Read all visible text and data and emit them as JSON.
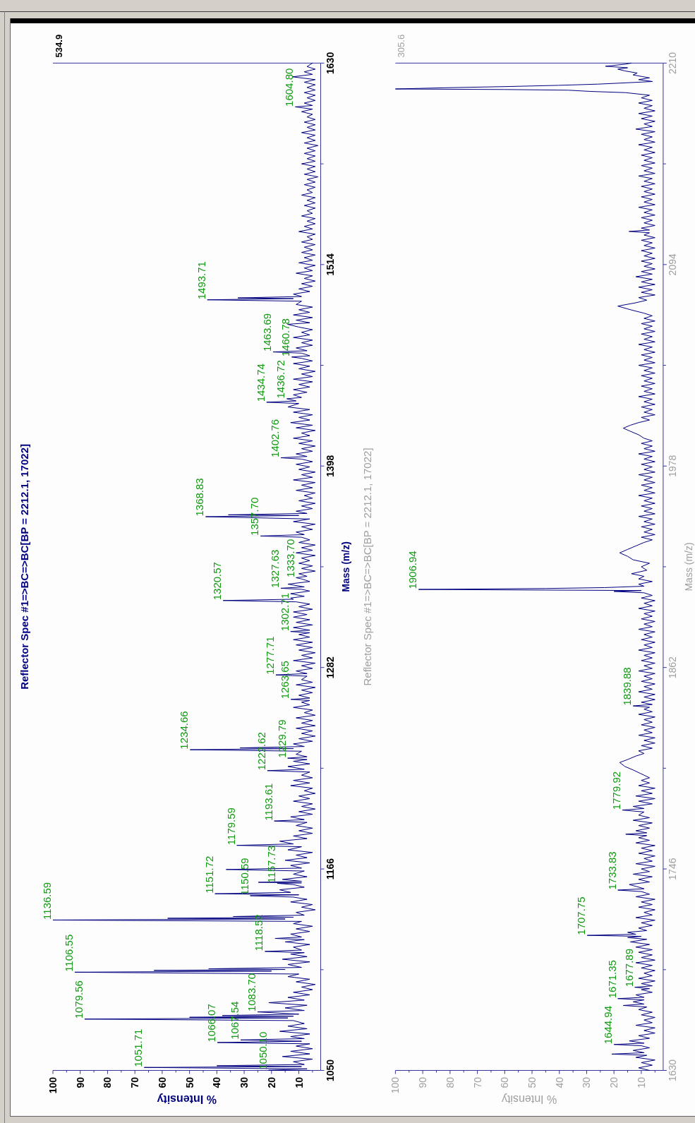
{
  "chart_data": [
    {
      "type": "line",
      "title": "Reflector Spec #1=>BC=>BC[BP = 2212.1, 17022]",
      "xlabel": "% Intensity",
      "ylabel": "Mass (m/z)",
      "xlim": [
        100,
        2
      ],
      "xticks": [
        100,
        {
          "value": 95,
          "label": null
        },
        90,
        {
          "value": 85,
          "label": null
        },
        80,
        {
          "value": 75,
          "label": null
        },
        70,
        {
          "value": 65,
          "label": null
        },
        60,
        {
          "value": 55,
          "label": null
        },
        50,
        {
          "value": 45,
          "label": null
        },
        40,
        {
          "value": 35,
          "label": null
        },
        30,
        {
          "value": 25,
          "label": null
        },
        20,
        {
          "value": 15,
          "label": null
        },
        10,
        {
          "value": 5,
          "label": null
        }
      ],
      "ylim": [
        1050,
        1630
      ],
      "yticks": [
        1050,
        {
          "value": 1108,
          "label": null
        },
        1166,
        {
          "value": 1224,
          "label": null
        },
        1282,
        {
          "value": 1340,
          "label": null
        },
        1398,
        {
          "value": 1456,
          "label": null
        },
        1514,
        {
          "value": 1572,
          "label": null
        },
        1630
      ],
      "x": [
        6,
        21.1,
        7,
        66.6,
        9,
        40,
        8,
        12,
        5,
        16,
        6,
        13,
        5,
        11,
        6,
        39.8,
        9,
        31.3,
        8,
        13,
        6,
        17,
        7,
        14,
        8,
        12,
        88.4,
        14,
        50,
        12,
        38,
        10,
        25.1,
        8,
        15,
        7,
        21,
        8,
        14,
        6,
        12,
        5,
        9,
        4,
        11,
        6,
        14,
        10,
        92,
        20,
        63,
        15,
        43,
        9,
        14,
        6,
        16,
        7,
        13,
        8,
        22.4,
        9,
        12,
        6,
        15,
        8,
        18.7,
        9,
        13,
        6,
        11,
        5,
        12,
        9,
        100,
        15,
        58,
        12,
        34,
        8,
        11,
        4,
        9,
        5,
        13,
        7,
        12,
        27.8,
        10,
        40.7,
        13,
        17,
        8,
        12,
        17.9,
        9,
        24.8,
        9,
        16,
        7,
        12,
        8,
        36.6,
        9,
        13,
        6,
        15,
        7,
        11,
        5,
        14,
        9,
        32.7,
        12,
        17,
        7,
        12,
        5,
        10,
        5,
        11,
        7,
        19,
        8,
        13,
        5,
        10,
        4,
        9,
        5,
        12,
        6,
        10,
        4,
        8,
        5,
        13,
        6,
        12,
        5,
        9,
        6,
        21.5,
        8,
        14,
        6,
        12,
        7,
        14.1,
        7,
        11,
        9,
        49.8,
        12,
        31.5,
        8,
        12,
        5,
        10,
        4,
        9,
        5,
        11,
        4,
        9,
        5,
        11,
        4,
        8,
        5,
        12,
        6,
        9,
        6,
        12.9,
        6,
        10,
        5,
        9,
        4,
        11,
        5,
        9,
        7,
        18.4,
        7,
        11,
        5,
        9,
        4,
        12,
        5,
        9,
        4,
        10,
        5,
        11,
        5,
        12,
        6,
        10,
        6,
        13,
        6,
        12,
        5,
        11,
        6,
        12,
        7,
        12,
        5,
        10,
        6,
        11,
        37.7,
        12,
        13,
        8,
        13,
        6,
        9,
        16.6,
        8,
        14,
        6,
        9,
        11,
        7,
        10,
        4,
        9,
        5,
        10,
        6,
        9,
        4,
        11,
        5,
        9,
        4,
        10,
        6,
        9,
        24,
        8,
        11,
        5,
        9,
        4,
        12,
        6,
        44.1,
        10,
        35.8,
        7,
        11,
        5,
        9,
        4,
        10,
        5,
        8,
        4,
        11,
        5,
        9,
        4,
        12,
        5,
        9,
        4,
        10,
        6,
        11,
        5,
        9,
        16.6,
        7,
        11,
        5,
        9,
        4,
        10,
        5,
        12,
        6,
        9,
        4,
        11,
        5,
        13,
        6,
        10,
        5,
        12,
        6,
        14,
        10,
        21.8,
        11,
        14.4,
        9,
        12,
        7,
        12,
        6,
        10,
        5,
        12,
        5,
        9,
        4,
        10,
        6,
        12,
        5,
        9,
        12.6,
        6,
        9,
        19.4,
        7,
        11,
        5,
        9,
        5,
        12,
        6,
        9,
        5,
        10,
        14.1,
        6,
        11,
        5,
        12,
        6,
        10,
        5,
        11,
        9,
        43.5,
        12,
        32.3,
        9,
        12,
        6,
        10,
        5,
        9,
        4,
        8,
        5,
        11,
        5,
        8,
        4,
        10,
        5,
        8,
        4,
        9,
        5,
        8,
        4,
        9,
        5,
        7,
        4,
        10,
        5,
        8,
        4,
        7,
        4,
        9,
        5,
        7,
        4,
        8,
        4,
        7,
        4,
        9,
        5,
        7,
        4,
        8,
        4,
        7,
        3,
        8,
        4,
        7,
        4,
        9,
        4,
        7,
        4,
        8,
        4,
        7,
        3,
        8,
        4,
        7,
        4,
        9,
        4,
        7,
        4,
        8,
        4,
        7,
        5,
        9,
        5,
        11.3,
        5,
        8,
        4,
        7,
        4,
        8,
        4,
        7,
        4,
        8,
        4,
        12.3,
        5,
        8,
        4,
        7,
        5
      ],
      "series": [
        {
          "color": "#000080",
          "values": [
            1050,
            1050.1,
            1050.9,
            1051.71,
            1052.2,
            1052.7,
            1053.4,
            1055,
            1056.5,
            1058,
            1059.5,
            1061,
            1062.5,
            1064,
            1065.3,
            1066.07,
            1066.8,
            1067.54,
            1068.3,
            1069.5,
            1071,
            1072.5,
            1074,
            1075.5,
            1077,
            1078.7,
            1079.56,
            1080.2,
            1080.6,
            1081.2,
            1081.6,
            1082.4,
            1083.7,
            1084.5,
            1086,
            1087.5,
            1089,
            1090.5,
            1092,
            1093.5,
            1095,
            1096.5,
            1098,
            1099.5,
            1101,
            1102.5,
            1104,
            1105.5,
            1106.55,
            1107.2,
            1107.6,
            1108.1,
            1108.5,
            1109.3,
            1111,
            1112.5,
            1114,
            1115.5,
            1117,
            1117.8,
            1118.52,
            1119.3,
            1121,
            1122.5,
            1124,
            1125.3,
            1126,
            1126.8,
            1128.5,
            1130,
            1131.5,
            1133,
            1134.5,
            1135.8,
            1136.59,
            1137.2,
            1137.6,
            1138.2,
            1138.6,
            1139.4,
            1141,
            1142.5,
            1144,
            1145.5,
            1147,
            1148.5,
            1149.8,
            1150.59,
            1151.1,
            1151.72,
            1152.5,
            1154,
            1155.5,
            1157,
            1157.73,
            1158,
            1158.3,
            1158.9,
            1160,
            1161.5,
            1163,
            1164.8,
            1165.7,
            1166.5,
            1168,
            1169.5,
            1171,
            1172.5,
            1174,
            1175.5,
            1177,
            1178.8,
            1179.59,
            1180.4,
            1182,
            1183.5,
            1185,
            1186.5,
            1188,
            1189.5,
            1191,
            1192.8,
            1193.61,
            1194.4,
            1196,
            1197.5,
            1199,
            1200.5,
            1202,
            1203.5,
            1205,
            1206.5,
            1208,
            1209.5,
            1211,
            1212.5,
            1214,
            1215.5,
            1217,
            1218.5,
            1220,
            1221.8,
            1222.62,
            1223.4,
            1225,
            1226.5,
            1228,
            1229,
            1229.79,
            1230.6,
            1232,
            1233.8,
            1234.66,
            1235.3,
            1235.7,
            1236.5,
            1238,
            1239.5,
            1241,
            1242.5,
            1244,
            1245.5,
            1247,
            1248.5,
            1250,
            1251.5,
            1253,
            1254.5,
            1256,
            1257.5,
            1259,
            1260.5,
            1262,
            1263,
            1263.65,
            1264.4,
            1266,
            1267.5,
            1269,
            1270.5,
            1272,
            1273.5,
            1275,
            1277,
            1277.71,
            1278.5,
            1280,
            1281.5,
            1283,
            1284.5,
            1286,
            1287.5,
            1289,
            1290.5,
            1292,
            1293.5,
            1295,
            1296.5,
            1298,
            1299.5,
            1301,
            1302,
            1302.71,
            1303.5,
            1305,
            1306.5,
            1308,
            1309.5,
            1311,
            1312.5,
            1314,
            1315.5,
            1317,
            1318.5,
            1319.8,
            1320.57,
            1321.3,
            1322,
            1323,
            1324.5,
            1326,
            1327,
            1327.63,
            1328.4,
            1330,
            1331.5,
            1333,
            1333.7,
            1334.5,
            1336,
            1337.5,
            1339,
            1340.5,
            1342,
            1343.5,
            1345,
            1346.5,
            1348,
            1349.5,
            1351,
            1352.5,
            1354,
            1355.5,
            1357,
            1357.7,
            1358.5,
            1360,
            1361.5,
            1363,
            1364.5,
            1366,
            1367.5,
            1368.83,
            1369.5,
            1369.9,
            1370.7,
            1372,
            1373.5,
            1375,
            1376.5,
            1378,
            1379.5,
            1381,
            1382.5,
            1384,
            1385.5,
            1387,
            1388.5,
            1390,
            1391.5,
            1393,
            1394.5,
            1396,
            1397.5,
            1399,
            1400.5,
            1402,
            1402.76,
            1403.5,
            1405,
            1406.5,
            1408,
            1409.5,
            1411,
            1412.5,
            1414,
            1415.5,
            1417,
            1418.5,
            1420,
            1421.5,
            1423,
            1424.5,
            1426,
            1427.5,
            1429,
            1430.5,
            1432,
            1434,
            1434.74,
            1435.5,
            1436.72,
            1437.5,
            1439,
            1440.5,
            1442,
            1443.5,
            1445,
            1446.5,
            1448,
            1449.5,
            1451,
            1452.5,
            1454,
            1455.5,
            1457,
            1458.5,
            1460,
            1460.78,
            1461.5,
            1463,
            1463.69,
            1464.4,
            1466,
            1467.5,
            1469,
            1470.5,
            1472,
            1473.5,
            1475,
            1476.5,
            1478,
            1479.6,
            1480.5,
            1482,
            1483.5,
            1485,
            1486.5,
            1488,
            1489.5,
            1491,
            1492.9,
            1493.71,
            1494.4,
            1494.8,
            1495.6,
            1497,
            1498.5,
            1500,
            1501.5,
            1503,
            1504.5,
            1506,
            1507.5,
            1509,
            1510.5,
            1512,
            1513.5,
            1515,
            1516.5,
            1518,
            1519.5,
            1521,
            1522.5,
            1524,
            1525.5,
            1527,
            1528.5,
            1530,
            1531.5,
            1533,
            1534.5,
            1536,
            1537.5,
            1539,
            1540.5,
            1542,
            1543.5,
            1545,
            1546.5,
            1548,
            1549.5,
            1551,
            1552.5,
            1554,
            1555.5,
            1557,
            1558.5,
            1560,
            1561.5,
            1563,
            1564.5,
            1566,
            1567.5,
            1569,
            1570.5,
            1572,
            1573.5,
            1575,
            1576.5,
            1578,
            1579.5,
            1581,
            1582.5,
            1584,
            1585.5,
            1587,
            1588.5,
            1590,
            1591.5,
            1593,
            1594.5,
            1596,
            1597.5,
            1599,
            1600.5,
            1602,
            1603.5,
            1604.8,
            1605.6,
            1607,
            1608.5,
            1610,
            1611.5,
            1613,
            1614.5,
            1616,
            1617.5,
            1619,
            1620.5,
            1622.1,
            1623.5,
            1625,
            1626.5,
            1628,
            1630
          ]
        }
      ],
      "annotations": [
        "534.9",
        {
          "text": "1050.10",
          "x": 21.1,
          "y": 1050.1
        },
        {
          "text": "1051.71",
          "x": 66.6,
          "y": 1051.71
        },
        {
          "text": "1066.07",
          "x": 39.8,
          "y": 1066.07
        },
        {
          "text": "1067.54",
          "x": 31.3,
          "y": 1067.54
        },
        {
          "text": "1079.56",
          "x": 88.4,
          "y": 1079.56
        },
        {
          "text": "1083.70",
          "x": 25.1,
          "y": 1083.7
        },
        {
          "text": "1106.55",
          "x": 92,
          "y": 1106.55
        },
        {
          "text": "1118.52",
          "x": 22.4,
          "y": 1118.52
        },
        {
          "text": "1136.59",
          "x": 100,
          "y": 1136.59
        },
        {
          "text": "1150.59",
          "x": 27.8,
          "y": 1150.59
        },
        {
          "text": "1151.72",
          "x": 40.7,
          "y": 1151.72
        },
        {
          "text": "1157.73",
          "x": 17.9,
          "y": 1157.73
        },
        {
          "text": "1179.59",
          "x": 32.7,
          "y": 1179.59
        },
        {
          "text": "1193.61",
          "x": 19,
          "y": 1193.61
        },
        {
          "text": "1222.62",
          "x": 21.5,
          "y": 1222.62
        },
        {
          "text": "1229.79",
          "x": 14.1,
          "y": 1229.79
        },
        {
          "text": "1234.66",
          "x": 49.8,
          "y": 1234.66
        },
        {
          "text": "1263.65",
          "x": 12.9,
          "y": 1263.65
        },
        {
          "text": "1277.71",
          "x": 18.4,
          "y": 1277.71
        },
        {
          "text": "1302.71",
          "x": 13,
          "y": 1302.71
        },
        {
          "text": "1320.57",
          "x": 37.7,
          "y": 1320.57
        },
        {
          "text": "1327.63",
          "x": 16.6,
          "y": 1327.63
        },
        {
          "text": "1333.70",
          "x": 11,
          "y": 1333.7
        },
        {
          "text": "1357.70",
          "x": 24,
          "y": 1357.7
        },
        {
          "text": "1368.83",
          "x": 44.1,
          "y": 1368.83
        },
        {
          "text": "1402.76",
          "x": 16.6,
          "y": 1402.76
        },
        {
          "text": "1434.74",
          "x": 21.8,
          "y": 1434.74
        },
        {
          "text": "1436.72",
          "x": 14.4,
          "y": 1436.72
        },
        {
          "text": "1460.78",
          "x": 12.6,
          "y": 1460.78
        },
        {
          "text": "1463.69",
          "x": 19.4,
          "y": 1463.69
        },
        {
          "text": "1493.71",
          "x": 43.5,
          "y": 1493.71
        },
        {
          "text": "1604.80",
          "x": 11.3,
          "y": 1604.8
        }
      ]
    },
    {
      "type": "line",
      "title": "Reflector Spec #1=>BC=>BC[BP = 2212.1, 17022]",
      "xlabel": "% Intensity",
      "ylabel": "Mass (m/z)",
      "xlim": [
        100,
        2
      ],
      "xticks": [
        100,
        {
          "value": 95,
          "label": null
        },
        90,
        {
          "value": 85,
          "label": null
        },
        80,
        {
          "value": 75,
          "label": null
        },
        70,
        {
          "value": 65,
          "label": null
        },
        60,
        {
          "value": 55,
          "label": null
        },
        50,
        {
          "value": 45,
          "label": null
        },
        40,
        {
          "value": 35,
          "label": null
        },
        30,
        {
          "value": 25,
          "label": null
        },
        20,
        {
          "value": 15,
          "label": null
        },
        10,
        {
          "value": 5,
          "label": null
        }
      ],
      "ylim": [
        1630,
        2210
      ],
      "yticks": [
        1630,
        {
          "value": 1688,
          "label": null
        },
        1746,
        {
          "value": 1804,
          "label": null
        },
        1862,
        {
          "value": 1920,
          "label": null
        },
        1978,
        {
          "value": 2036,
          "label": null
        },
        2094,
        {
          "value": 2152,
          "label": null
        },
        2210
      ],
      "x": [
        7,
        11,
        6,
        10,
        5,
        12,
        8,
        20.8,
        9,
        13,
        7,
        10,
        20,
        9,
        14.4,
        7,
        11,
        5,
        9,
        5,
        12,
        6,
        9,
        5,
        10,
        6,
        11,
        8,
        16.6,
        9,
        13,
        9,
        18.6,
        9,
        12,
        6,
        10,
        7,
        12.4,
        6,
        10,
        5,
        11,
        6,
        9,
        5,
        10,
        6,
        12,
        5,
        10,
        6,
        11,
        6,
        12,
        7,
        14,
        8,
        15,
        10,
        29.8,
        12,
        15,
        8,
        11,
        6,
        10,
        5,
        12,
        6,
        9,
        5,
        11,
        6,
        10,
        5,
        12,
        7,
        10,
        18.6,
        9,
        12,
        14.4,
        7,
        11,
        6,
        13,
        7,
        10,
        5,
        12,
        6,
        9,
        5,
        11,
        6,
        10,
        5,
        12,
        7,
        11,
        8,
        15.7,
        8,
        12,
        7,
        11,
        6,
        13,
        7,
        11,
        9,
        16.9,
        9,
        13,
        6,
        11,
        5,
        12,
        6,
        10,
        5,
        11,
        7,
        10,
        7,
        9,
        11,
        13,
        16,
        17.9,
        15,
        12,
        9,
        11,
        6,
        10,
        5,
        9,
        5,
        11,
        6,
        9,
        5,
        10,
        6,
        9,
        5,
        11,
        6,
        9,
        7,
        13,
        6,
        10,
        5,
        9,
        5,
        11,
        6,
        9,
        5,
        10,
        6,
        9,
        5,
        11,
        6,
        9,
        5,
        10,
        6,
        9,
        5,
        11,
        6,
        9,
        5,
        10,
        6,
        9,
        5,
        11,
        6,
        9,
        5,
        10,
        6,
        9,
        5,
        11,
        6,
        9,
        5,
        10,
        6,
        9,
        20,
        10,
        91.5,
        45,
        23.5,
        9,
        11,
        6,
        11,
        9,
        13.6,
        8,
        10,
        7,
        13,
        15,
        17.9,
        15,
        12,
        9,
        6,
        10,
        5,
        9,
        6,
        10,
        5,
        9,
        6,
        11,
        5,
        9,
        6,
        10,
        5,
        9,
        6,
        11,
        5,
        9,
        6,
        10,
        5,
        9,
        6,
        11,
        5,
        9,
        6,
        10,
        5,
        9,
        6,
        11,
        5,
        9,
        6,
        10,
        6,
        9,
        11,
        14,
        16.6,
        14,
        11,
        7,
        10,
        5,
        9,
        6,
        10,
        5,
        9,
        6,
        11,
        5,
        9,
        6,
        10,
        5,
        9,
        6,
        10,
        5,
        9,
        6,
        11,
        5,
        9,
        6,
        10,
        5,
        9,
        6,
        11,
        5,
        9,
        6,
        10,
        5,
        9,
        6,
        10,
        5,
        9,
        6,
        9,
        14,
        18.6,
        12,
        8,
        11,
        5,
        10,
        6,
        11,
        5,
        10,
        6,
        12,
        6,
        10,
        5,
        9,
        6,
        10,
        5,
        9,
        6,
        10,
        5,
        9,
        6,
        10,
        5,
        9,
        7,
        14.5,
        7,
        10,
        5,
        9,
        6,
        10,
        5,
        9,
        6,
        11,
        5,
        9,
        6,
        10,
        5,
        9,
        6,
        10,
        5,
        9,
        6,
        11,
        5,
        9,
        6,
        10,
        5,
        9,
        6,
        10,
        5,
        9,
        6,
        11,
        5,
        9,
        6,
        10,
        5,
        12,
        6,
        9,
        5,
        10,
        6,
        11,
        5,
        9,
        6,
        11,
        6,
        10,
        7,
        15.8,
        28.6,
        36.7,
        60.2,
        100,
        82,
        59.3,
        40.3,
        25.8,
        14.9,
        5.9,
        11,
        7,
        9.5,
        13,
        11.5,
        16,
        18.6,
        15,
        23.1,
        15.8,
        13.7
      ],
      "series": [
        {
          "color": "#000080",
          "values": [
            1630,
            1631.5,
            1633,
            1634.5,
            1636,
            1637.5,
            1638.7,
            1639.4,
            1640.2,
            1641.5,
            1643,
            1644.2,
            1644.94,
            1645.7,
            1647,
            1648.5,
            1650,
            1651.5,
            1653,
            1654.5,
            1656,
            1657.5,
            1659,
            1660.5,
            1662,
            1663.5,
            1665,
            1666.5,
            1667.4,
            1668.2,
            1669.5,
            1670.6,
            1671.35,
            1672.1,
            1673.5,
            1675,
            1676.5,
            1677.1,
            1677.89,
            1678.7,
            1680,
            1681.5,
            1683,
            1684.5,
            1686,
            1687.5,
            1689,
            1690.5,
            1692,
            1693.5,
            1695,
            1696.5,
            1698,
            1699.5,
            1701,
            1702.5,
            1704,
            1705.5,
            1706.5,
            1707.2,
            1707.75,
            1708.4,
            1709.5,
            1710.5,
            1712,
            1713.5,
            1715,
            1716.5,
            1718,
            1719.5,
            1721,
            1722.5,
            1724,
            1725.5,
            1727,
            1728.5,
            1730,
            1731.5,
            1733,
            1733.83,
            1734.6,
            1736,
            1737,
            1738.5,
            1740,
            1741.5,
            1743,
            1744.5,
            1746,
            1747.5,
            1749,
            1750.5,
            1752,
            1753.5,
            1755,
            1756.5,
            1758,
            1759.5,
            1761,
            1762.5,
            1764,
            1765.2,
            1766,
            1766.8,
            1768,
            1769.5,
            1771,
            1772.5,
            1774,
            1775.5,
            1777,
            1778.8,
            1779.92,
            1780.8,
            1782,
            1783.5,
            1785,
            1786.5,
            1788,
            1789.5,
            1791,
            1792.5,
            1794,
            1795.5,
            1797,
            1798.5,
            1800,
            1801.5,
            1803,
            1805,
            1807.3,
            1809,
            1811,
            1812.5,
            1814,
            1815.5,
            1817,
            1818.5,
            1820,
            1821.5,
            1823,
            1824.5,
            1826,
            1827.5,
            1829,
            1830.5,
            1832,
            1833.5,
            1835,
            1836.5,
            1838,
            1839.1,
            1839.88,
            1840.7,
            1842,
            1843.5,
            1845,
            1846.5,
            1848,
            1849.5,
            1851,
            1852.5,
            1854,
            1855.5,
            1857,
            1858.5,
            1860,
            1861.5,
            1863,
            1864.5,
            1866,
            1867.5,
            1869,
            1870.5,
            1872,
            1873.5,
            1875,
            1876.5,
            1878,
            1879.5,
            1881,
            1882.5,
            1884,
            1885.5,
            1887,
            1888.5,
            1890,
            1891.5,
            1893,
            1894.5,
            1896,
            1897.5,
            1899,
            1900.5,
            1902,
            1903.5,
            1905,
            1905.8,
            1906.3,
            1906.94,
            1907.5,
            1908,
            1908.8,
            1910,
            1911.5,
            1913,
            1914.5,
            1916,
            1918,
            1920,
            1922,
            1924,
            1926,
            1928,
            1930,
            1932,
            1934,
            1935.5,
            1937,
            1938.5,
            1940,
            1941.5,
            1943,
            1944.5,
            1946,
            1947.5,
            1949,
            1950.5,
            1952,
            1953.5,
            1955,
            1956.5,
            1958,
            1959.5,
            1961,
            1962.5,
            1964,
            1965.5,
            1967,
            1968.5,
            1970,
            1971.5,
            1973,
            1974.5,
            1976,
            1977.5,
            1979,
            1980.5,
            1982,
            1983.5,
            1985,
            1986.5,
            1988,
            1989.5,
            1991,
            1992.5,
            1994,
            1996,
            1998,
            1999.8,
            2001.5,
            2003,
            2004.5,
            2006,
            2007.5,
            2009,
            2010.5,
            2012,
            2013.5,
            2015,
            2016.5,
            2018,
            2019.5,
            2021,
            2022.5,
            2024,
            2025.5,
            2027,
            2028.5,
            2030,
            2031.5,
            2033,
            2034.5,
            2036,
            2037.5,
            2039,
            2040.5,
            2042,
            2043.5,
            2045,
            2046.5,
            2048,
            2049.5,
            2051,
            2052.5,
            2054,
            2055.5,
            2057,
            2058.5,
            2060,
            2061.5,
            2063,
            2064.5,
            2066,
            2068,
            2070.1,
            2072,
            2073.5,
            2075,
            2076.5,
            2078,
            2079.5,
            2081,
            2082.5,
            2084,
            2085.5,
            2087,
            2088.5,
            2090,
            2091.5,
            2093,
            2094.5,
            2096,
            2097.5,
            2099,
            2100.5,
            2102,
            2103.5,
            2105,
            2106.5,
            2108,
            2109.5,
            2111,
            2112.3,
            2113.1,
            2113.9,
            2115,
            2116.5,
            2118,
            2119.5,
            2121,
            2122.5,
            2124,
            2125.5,
            2127,
            2128.5,
            2130,
            2131.5,
            2133,
            2134.5,
            2136,
            2137.5,
            2139,
            2140.5,
            2142,
            2143.5,
            2145,
            2146.5,
            2148,
            2149.5,
            2151,
            2152.5,
            2154,
            2155.5,
            2157,
            2158.5,
            2160,
            2161.5,
            2163,
            2164.5,
            2166,
            2167.5,
            2169,
            2170.5,
            2172,
            2173.5,
            2175,
            2176.5,
            2178,
            2179.5,
            2181,
            2182.5,
            2184,
            2185.5,
            2187,
            2188.5,
            2190,
            2191.5,
            2193,
            2193.7,
            2194.4,
            2194.8,
            2195.1,
            2195.8,
            2196.5,
            2197.2,
            2197.9,
            2198.7,
            2199.4,
            2200.5,
            2201.5,
            2202.2,
            2203.2,
            2204.3,
            2205.5,
            2206.5,
            2207.3,
            2208.2,
            2209.4,
            2210
          ]
        }
      ],
      "annotations": [
        "305.6",
        {
          "text": "1644.94",
          "x": 20,
          "y": 1644.94
        },
        {
          "text": "1671.35",
          "x": 18.6,
          "y": 1671.35
        },
        {
          "text": "1677.89",
          "x": 12.4,
          "y": 1677.89
        },
        {
          "text": "1707.75",
          "x": 29.8,
          "y": 1707.75
        },
        {
          "text": "1733.83",
          "x": 18.6,
          "y": 1733.83
        },
        {
          "text": "1779.92",
          "x": 16.9,
          "y": 1779.92
        },
        {
          "text": "1839.88",
          "x": 13,
          "y": 1839.88
        },
        {
          "text": "1906.94",
          "x": 91.5,
          "y": 1906.94
        }
      ]
    }
  ]
}
